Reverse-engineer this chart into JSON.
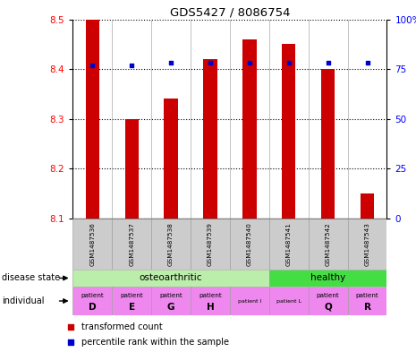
{
  "title": "GDS5427 / 8086754",
  "samples": [
    "GSM1487536",
    "GSM1487537",
    "GSM1487538",
    "GSM1487539",
    "GSM1487540",
    "GSM1487541",
    "GSM1487542",
    "GSM1487543"
  ],
  "transformed_count": [
    8.5,
    8.3,
    8.34,
    8.42,
    8.46,
    8.45,
    8.4,
    8.15
  ],
  "percentile_rank": [
    77,
    77,
    78,
    78,
    78,
    78,
    78,
    78
  ],
  "ymin": 8.1,
  "ymax": 8.5,
  "yticks": [
    8.1,
    8.2,
    8.3,
    8.4,
    8.5
  ],
  "right_ytick_labels": [
    "0",
    "25",
    "50",
    "75",
    "100%"
  ],
  "bar_color": "#cc0000",
  "dot_color": "#0000cc",
  "bar_width": 0.35,
  "oa_color": "#bbeeaa",
  "healthy_color": "#44dd44",
  "ind_color_large": "#ee88ee",
  "ind_color_small": "#ee88ee",
  "sample_box_color": "#cccccc",
  "legend_items": [
    {
      "color": "#cc0000",
      "label": "transformed count"
    },
    {
      "color": "#0000cc",
      "label": "percentile rank within the sample"
    }
  ],
  "left_labels": [
    "disease state",
    "individual"
  ],
  "ind_top": [
    "patient",
    "patient",
    "patient",
    "patient",
    "patient I",
    "patient L",
    "patient",
    "patient"
  ],
  "ind_bot": [
    "D",
    "E",
    "G",
    "H",
    "",
    "",
    "Q",
    "R"
  ],
  "ind_small": [
    false,
    false,
    false,
    false,
    true,
    true,
    false,
    false
  ]
}
